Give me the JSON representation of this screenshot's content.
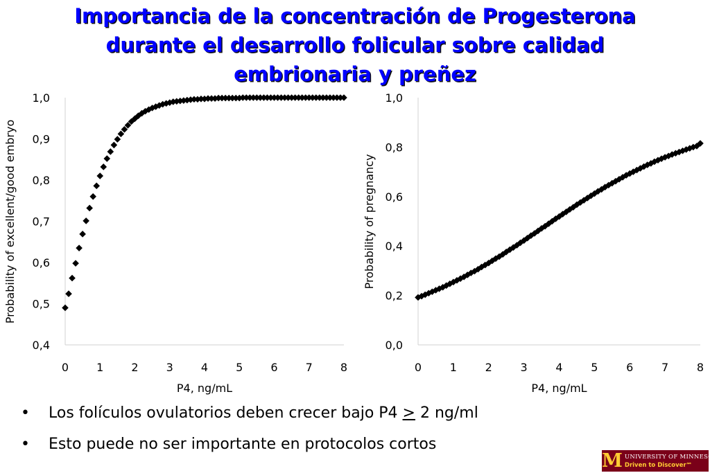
{
  "title": {
    "line1": "Importancia de la concentración de Progesterona",
    "line2": "durante el desarrollo folicular sobre calidad",
    "line3": "embrionaria y preñez"
  },
  "chart_data": [
    {
      "type": "scatter",
      "marker": "diamond",
      "color": "#000000",
      "xlabel": "P4, ng/mL",
      "ylabel": "Probability of excellent/good embryo",
      "xlim": [
        0,
        8
      ],
      "ylim": [
        0.4,
        1.0
      ],
      "xticks": [
        "0",
        "1",
        "2",
        "3",
        "4",
        "5",
        "6",
        "7",
        "8"
      ],
      "yticks": [
        "0,4",
        "0,5",
        "0,6",
        "0,7",
        "0,8",
        "0,9",
        "1,0"
      ],
      "x": [
        0.0,
        0.1,
        0.2,
        0.3,
        0.4,
        0.5,
        0.6,
        0.7,
        0.8,
        0.9,
        1.0,
        1.1,
        1.2,
        1.3,
        1.4,
        1.5,
        1.6,
        1.7,
        1.8,
        1.9,
        2.0,
        2.1,
        2.2,
        2.3,
        2.4,
        2.5,
        2.6,
        2.7,
        2.8,
        2.9,
        3.0,
        3.1,
        3.2,
        3.3,
        3.4,
        3.5,
        3.6,
        3.7,
        3.8,
        3.9,
        4.0,
        4.1,
        4.2,
        4.3,
        4.4,
        4.5,
        4.6,
        4.7,
        4.8,
        4.9,
        5.0,
        5.1,
        5.2,
        5.3,
        5.4,
        5.5,
        5.6,
        5.7,
        5.8,
        5.9,
        6.0,
        6.1,
        6.2,
        6.3,
        6.4,
        6.5,
        6.6,
        6.7,
        6.8,
        6.9,
        7.0,
        7.1,
        7.2,
        7.3,
        7.4,
        7.5,
        7.6,
        7.7,
        7.8,
        7.9,
        8.0
      ],
      "y": [
        0.49,
        0.524,
        0.562,
        0.598,
        0.635,
        0.669,
        0.701,
        0.732,
        0.76,
        0.786,
        0.81,
        0.832,
        0.852,
        0.869,
        0.885,
        0.899,
        0.912,
        0.923,
        0.933,
        0.942,
        0.949,
        0.956,
        0.962,
        0.967,
        0.971,
        0.975,
        0.978,
        0.981,
        0.984,
        0.986,
        0.988,
        0.99,
        0.991,
        0.992,
        0.993,
        0.994,
        0.995,
        0.996,
        0.996,
        0.997,
        0.997,
        0.998,
        0.998,
        0.998,
        0.999,
        0.999,
        0.999,
        0.999,
        0.999,
        0.999,
        0.999,
        1.0,
        1.0,
        1.0,
        1.0,
        1.0,
        1.0,
        1.0,
        1.0,
        1.0,
        1.0,
        1.0,
        1.0,
        1.0,
        1.0,
        1.0,
        1.0,
        1.0,
        1.0,
        1.0,
        1.0,
        1.0,
        1.0,
        1.0,
        1.0,
        1.0,
        1.0,
        1.0,
        1.0,
        1.0,
        1.0
      ]
    },
    {
      "type": "scatter",
      "marker": "diamond",
      "color": "#000000",
      "xlabel": "P4, ng/mL",
      "ylabel": "Probability of pregnancy",
      "xlim": [
        0,
        8
      ],
      "ylim": [
        0.0,
        1.0
      ],
      "xticks": [
        "0",
        "1",
        "2",
        "3",
        "4",
        "5",
        "6",
        "7",
        "8"
      ],
      "yticks": [
        "0,0",
        "0,2",
        "0,4",
        "0,6",
        "0,8",
        "1,0"
      ],
      "x": [
        0.0,
        0.1,
        0.2,
        0.3,
        0.4,
        0.5,
        0.6,
        0.7,
        0.8,
        0.9,
        1.0,
        1.1,
        1.2,
        1.3,
        1.4,
        1.5,
        1.6,
        1.7,
        1.8,
        1.9,
        2.0,
        2.1,
        2.2,
        2.3,
        2.4,
        2.5,
        2.6,
        2.7,
        2.8,
        2.9,
        3.0,
        3.1,
        3.2,
        3.3,
        3.4,
        3.5,
        3.6,
        3.7,
        3.8,
        3.9,
        4.0,
        4.1,
        4.2,
        4.3,
        4.4,
        4.5,
        4.6,
        4.7,
        4.8,
        4.9,
        5.0,
        5.1,
        5.2,
        5.3,
        5.4,
        5.5,
        5.6,
        5.7,
        5.8,
        5.9,
        6.0,
        6.1,
        6.2,
        6.3,
        6.4,
        6.5,
        6.6,
        6.7,
        6.8,
        6.9,
        7.0,
        7.1,
        7.2,
        7.3,
        7.4,
        7.5,
        7.6,
        7.7,
        7.8,
        7.9,
        8.0
      ],
      "y": [
        0.192,
        0.197,
        0.203,
        0.209,
        0.215,
        0.221,
        0.227,
        0.233,
        0.24,
        0.247,
        0.254,
        0.261,
        0.268,
        0.275,
        0.283,
        0.291,
        0.298,
        0.306,
        0.315,
        0.323,
        0.331,
        0.34,
        0.349,
        0.357,
        0.366,
        0.376,
        0.385,
        0.394,
        0.403,
        0.413,
        0.422,
        0.432,
        0.442,
        0.451,
        0.461,
        0.471,
        0.48,
        0.49,
        0.5,
        0.51,
        0.519,
        0.529,
        0.538,
        0.548,
        0.557,
        0.567,
        0.576,
        0.585,
        0.594,
        0.603,
        0.612,
        0.621,
        0.629,
        0.638,
        0.646,
        0.654,
        0.662,
        0.67,
        0.678,
        0.686,
        0.693,
        0.7,
        0.707,
        0.714,
        0.721,
        0.728,
        0.734,
        0.741,
        0.747,
        0.753,
        0.759,
        0.764,
        0.77,
        0.775,
        0.78,
        0.785,
        0.79,
        0.795,
        0.8,
        0.804,
        0.815
      ]
    }
  ],
  "bullets": {
    "b1_prefix": "Los folículos ovulatorios deben crecer bajo P4 ",
    "b1_ge": ">",
    "b1_suffix": " 2 ng/ml",
    "b2": "Esto puede no ser importante en protocolos cortos",
    "marker": "•"
  },
  "logo": {
    "mark": "M",
    "university": "UNIVERSITY OF MINNESOTA",
    "tagline": "Driven to Discover℠",
    "bg_color": "#7a0019",
    "accent_color": "#ffcc33"
  }
}
